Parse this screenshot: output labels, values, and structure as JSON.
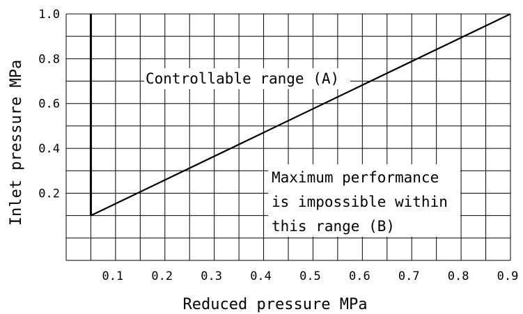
{
  "chart_data": {
    "type": "line",
    "xlabel": "Reduced pressure  MPa",
    "ylabel": "Inlet pressure  MPa",
    "xlim": [
      0,
      0.9
    ],
    "ylim": [
      -0.1,
      1.0
    ],
    "x_ticks": [
      "0.1",
      "0.2",
      "0.3",
      "0.4",
      "0.5",
      "0.6",
      "0.7",
      "0.8",
      "0.9"
    ],
    "y_ticks": [
      "0.2",
      "0.4",
      "0.6",
      "0.8",
      "1.0"
    ],
    "grid": true,
    "series": [
      {
        "x": [
          0.05,
          0.05
        ],
        "y": [
          1.0,
          0.1
        ]
      },
      {
        "x": [
          0.05,
          0.9
        ],
        "y": [
          0.1,
          1.0
        ]
      }
    ],
    "annotations": {
      "region_a": "Controllable range (A)",
      "region_b": [
        "Maximum performance",
        "is impossible within",
        "this range (B)"
      ]
    }
  }
}
